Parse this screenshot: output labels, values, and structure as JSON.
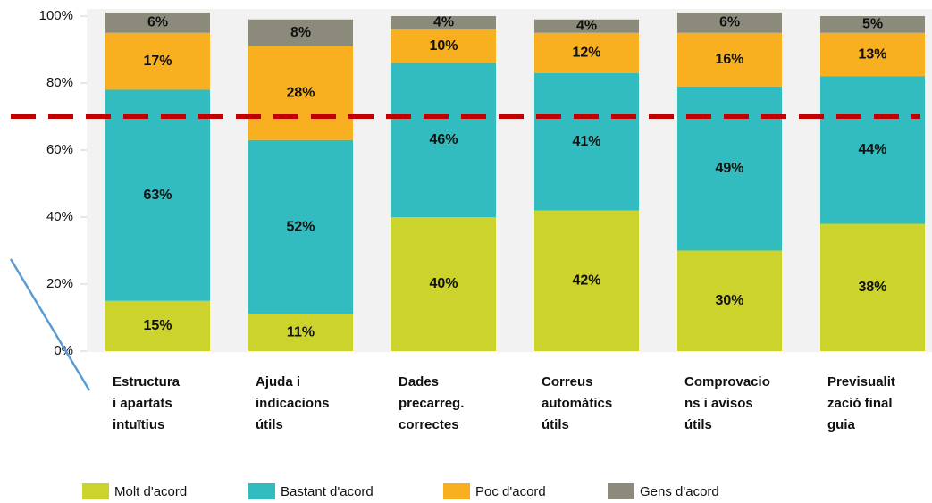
{
  "chart_data": {
    "type": "stacked_bar",
    "categories": [
      [
        "Estructura",
        "i apartats",
        "intuïtius"
      ],
      [
        "Ajuda i",
        "indicacions",
        "útils"
      ],
      [
        "Dades",
        "precarreg.",
        "correctes"
      ],
      [
        "Correus",
        "automàtics",
        "útils"
      ],
      [
        "Comprovacio",
        "ns i avisos",
        "útils"
      ],
      [
        "Previsualit",
        "zació final",
        "guia"
      ]
    ],
    "series": [
      {
        "name": "Molt d'acord",
        "color": "#cbd32c",
        "values": [
          15,
          11,
          40,
          42,
          30,
          38
        ],
        "value_labels": [
          "15%",
          "11%",
          "40%",
          "42%",
          "30%",
          "38%"
        ]
      },
      {
        "name": "Bastant d'acord",
        "color": "#33bcbf",
        "values": [
          63,
          52,
          46,
          41,
          49,
          44
        ],
        "value_labels": [
          "63%",
          "52%",
          "46%",
          "41%",
          "49%",
          "44%"
        ]
      },
      {
        "name": "Poc d'acord",
        "color": "#f8b020",
        "values": [
          17,
          28,
          10,
          12,
          16,
          13
        ],
        "value_labels": [
          "17%",
          "28%",
          "10%",
          "12%",
          "16%",
          "13%"
        ]
      },
      {
        "name": "Gens d'acord",
        "color": "#8c8b7b",
        "values": [
          6,
          8,
          4,
          4,
          6,
          5
        ],
        "value_labels": [
          "6%",
          "8%",
          "4%",
          "4%",
          "6%",
          "5%"
        ]
      }
    ],
    "ylim": [
      0,
      100
    ],
    "yticks": [
      {
        "value": 0,
        "label": "0%"
      },
      {
        "value": 20,
        "label": "20%"
      },
      {
        "value": 40,
        "label": "40%"
      },
      {
        "value": 60,
        "label": "60%"
      },
      {
        "value": 80,
        "label": "80%"
      },
      {
        "value": 100,
        "label": "100%"
      }
    ],
    "reference_line": {
      "value": 70,
      "color": "#c00000"
    },
    "legend": "bottom"
  }
}
